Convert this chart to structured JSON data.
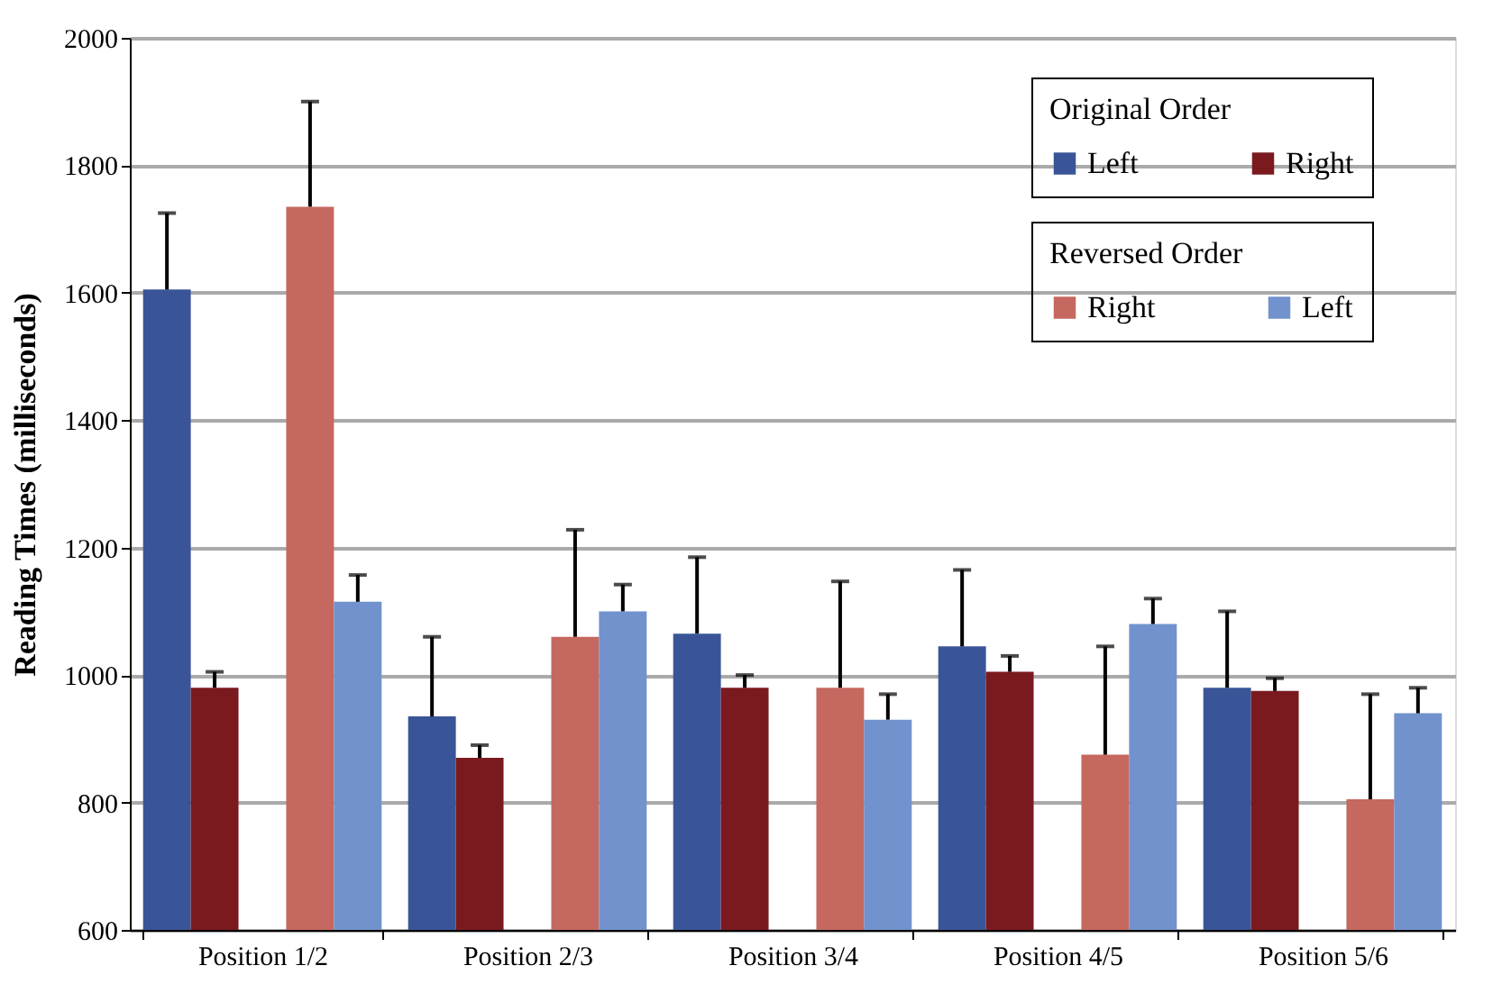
{
  "chart_data": {
    "type": "bar",
    "ylabel": "Reading Times (milliseconds)",
    "categories": [
      "Position 1/2",
      "Position 2/3",
      "Position 3/4",
      "Position 4/5",
      "Position 5/6"
    ],
    "series": [
      {
        "name": "Left",
        "color": "#3a5597",
        "values": [
          1605,
          935,
          1065,
          1045,
          980
        ],
        "errors": [
          [
            1605,
            1725
          ],
          [
            935,
            1060
          ],
          [
            1065,
            1185
          ],
          [
            1045,
            1165
          ],
          [
            980,
            1100
          ]
        ]
      },
      {
        "name": "Right",
        "color": "#7a1a1f",
        "values": [
          980,
          870,
          980,
          1005,
          975
        ],
        "errors": [
          [
            980,
            1005
          ],
          [
            870,
            890
          ],
          [
            980,
            1000
          ],
          [
            1005,
            1030
          ],
          [
            975,
            995
          ]
        ]
      },
      {
        "name": "Right",
        "color": "#c5685f",
        "values": [
          1735,
          1060,
          980,
          875,
          805
        ],
        "errors": [
          [
            1735,
            1900
          ],
          [
            1060,
            1228
          ],
          [
            980,
            1147
          ],
          [
            875,
            1045
          ],
          [
            805,
            970
          ]
        ]
      },
      {
        "name": "Left",
        "color": "#7192cc",
        "values": [
          1115,
          1100,
          930,
          1080,
          940
        ],
        "errors": [
          [
            1115,
            1157
          ],
          [
            1100,
            1142
          ],
          [
            930,
            970
          ],
          [
            1080,
            1120
          ],
          [
            940,
            980
          ]
        ]
      }
    ],
    "annotations": [
      "Original Order",
      "Reversed Order"
    ],
    "ylim": [
      600,
      2000
    ],
    "yticks": [
      600,
      800,
      1000,
      1200,
      1400,
      1600,
      1800,
      2000
    ],
    "grid": "y",
    "legend": "top right"
  }
}
